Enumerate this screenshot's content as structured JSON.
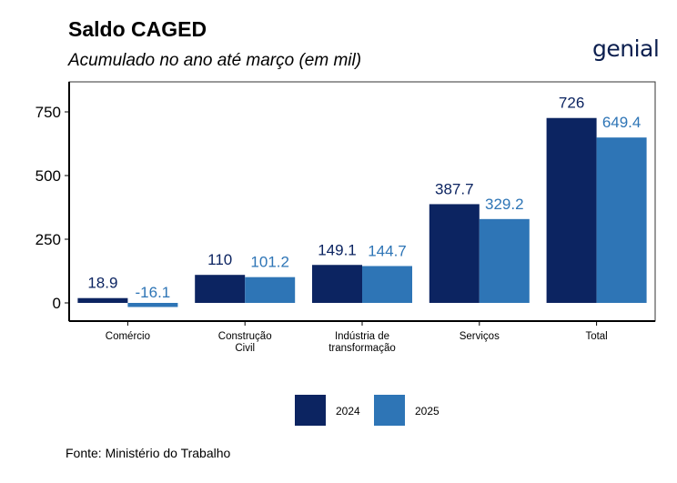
{
  "header": {
    "title": "Saldo CAGED",
    "subtitle": "Acumulado no ano até março (em mil)",
    "logo": "genial"
  },
  "footer": {
    "source": "Fonte: Ministério do Trabalho"
  },
  "colors": {
    "2024": "#0c2461",
    "2025": "#2e75b6"
  },
  "chart_data": {
    "type": "bar",
    "title": "Saldo CAGED",
    "subtitle": "Acumulado no ano até março (em mil)",
    "xlabel": "",
    "ylabel": "",
    "categories": [
      [
        "Comércio"
      ],
      [
        "Construção",
        "Civil"
      ],
      [
        "Indústria de",
        "transformação"
      ],
      [
        "Serviços"
      ],
      [
        "Total"
      ]
    ],
    "series": [
      {
        "name": "2024",
        "values": [
          18.9,
          110,
          149.1,
          387.7,
          726
        ],
        "labels": [
          "18.9",
          "110",
          "149.1",
          "387.7",
          "726"
        ]
      },
      {
        "name": "2025",
        "values": [
          -16.1,
          101.2,
          144.7,
          329.2,
          649.4
        ],
        "labels": [
          "-16.1",
          "101.2",
          "144.7",
          "329.2",
          "649.4"
        ]
      }
    ],
    "yticks": [
      0,
      250,
      500,
      750
    ],
    "ylim": [
      -20,
      870
    ],
    "legend": "bottom",
    "grid": false
  }
}
